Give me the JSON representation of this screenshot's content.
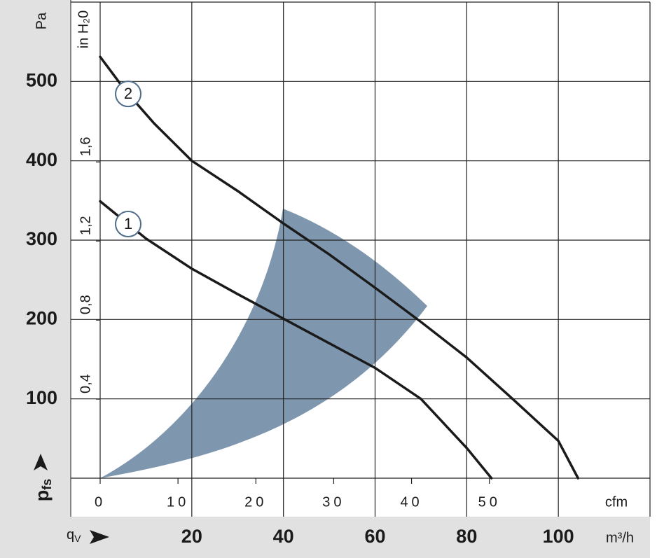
{
  "chart_data": {
    "type": "line",
    "y_label": "Pa",
    "y_symbol": "p",
    "y_symbol_sub": "fs",
    "y2_label": "in H₂0",
    "x_symbol": "q",
    "x_symbol_sub": "V",
    "x_label": "m³/h",
    "x2_label": "cfm",
    "xlim": [
      0,
      120
    ],
    "xticks": [
      20,
      40,
      60,
      80,
      100
    ],
    "x2lim": [
      0,
      70.63
    ],
    "x2ticks": [
      0,
      10,
      20,
      30,
      40,
      50
    ],
    "ylim": [
      0,
      600
    ],
    "yticks": [
      100,
      200,
      300,
      400,
      500
    ],
    "y2lim": [
      0,
      2.409
    ],
    "y2ticks": [
      {
        "value": 0.4,
        "label": "0,4"
      },
      {
        "value": 0.8,
        "label": "0,8"
      },
      {
        "value": 1.2,
        "label": "1,2"
      },
      {
        "value": 1.6,
        "label": "1,6"
      }
    ],
    "grid": true,
    "series": [
      {
        "name": "1",
        "color": "#1a1a1a",
        "x": [
          0,
          10,
          20,
          30,
          40,
          50,
          60,
          70,
          80,
          85.4
        ],
        "values": [
          349,
          302,
          264,
          232,
          201,
          170,
          139,
          100,
          38,
          0
        ]
      },
      {
        "name": "2",
        "color": "#1a1a1a",
        "x": [
          0,
          5.7,
          11.8,
          20,
          30,
          40,
          50,
          60,
          70,
          80,
          90,
          100,
          104.3
        ],
        "values": [
          531,
          487,
          447,
          400,
          362,
          321,
          282,
          240,
          197,
          152,
          100,
          47,
          0
        ]
      }
    ]
  }
}
